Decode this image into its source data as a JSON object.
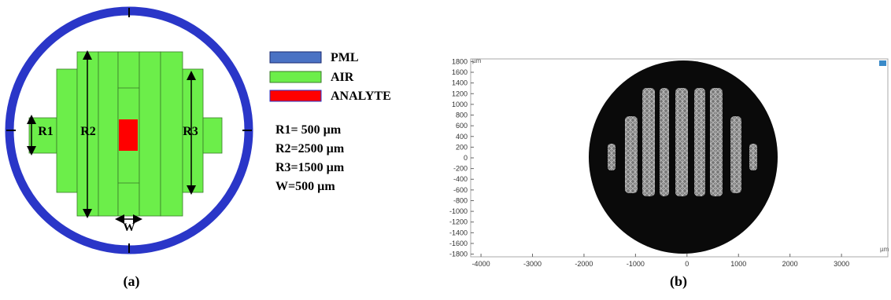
{
  "panel_a": {
    "legend": [
      {
        "label": "PML",
        "color": "#4a72c4"
      },
      {
        "label": "AIR",
        "color": "#6cee4a"
      },
      {
        "label": "ANALYTE",
        "color": "#ff0000"
      }
    ],
    "dimensions": [
      "R1",
      "R2",
      "R3",
      "W"
    ],
    "parameters": [
      "R1= 500 µm",
      "R2=2500 µm",
      "R3=1500 µm",
      "W=500 µm"
    ],
    "caption": "(a)"
  },
  "panel_b": {
    "y_unit": "µm",
    "x_unit": "µm",
    "xlim": [
      -4200,
      3900
    ],
    "ylim": [
      -1850,
      1850
    ],
    "xticks": [
      -4000,
      -3000,
      -2000,
      -1000,
      0,
      1000,
      2000,
      3000
    ],
    "yticks": [
      1800,
      1600,
      1400,
      1200,
      1000,
      800,
      600,
      400,
      200,
      0,
      -200,
      -400,
      -600,
      -800,
      -1000,
      -1200,
      -1400,
      -1600,
      -1800
    ],
    "caption": "(b)"
  }
}
